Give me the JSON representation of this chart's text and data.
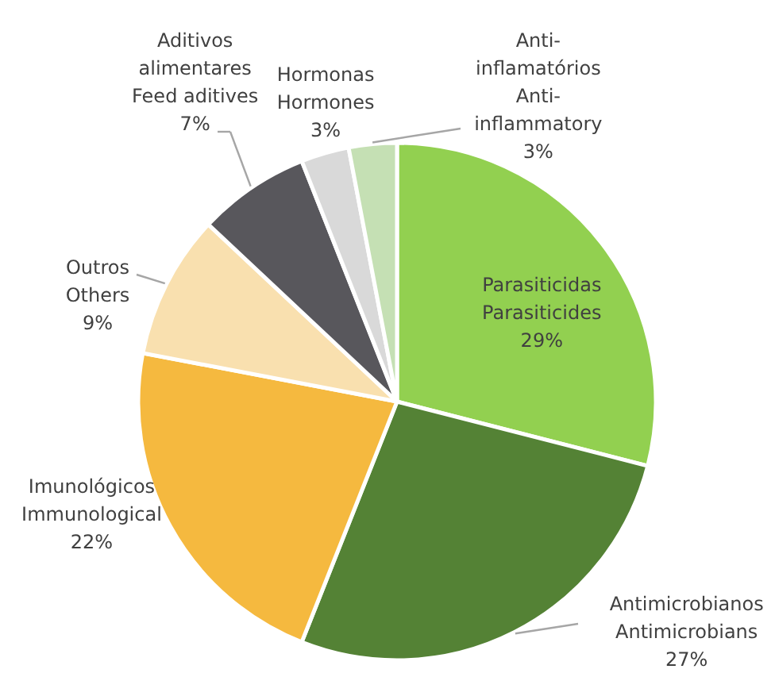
{
  "chart_data": {
    "type": "pie",
    "categories": [
      "Parasiticidas\nParasiticides",
      "Antimicrobianos\nAntimicrobians",
      "Imunológicos\nImmunological",
      "Outros\nOthers",
      "Aditivos\nalimentares\nFeed aditives",
      "Hormonas\nHormones",
      "Anti-\ninflamatórios\nAnti-\ninflammatory"
    ],
    "values": [
      29,
      27,
      22,
      9,
      7,
      3,
      3
    ],
    "colors": [
      "#92d050",
      "#548235",
      "#f5b93f",
      "#f9e0af",
      "#58575c",
      "#d9d9d9",
      "#c5e0b4"
    ],
    "value_labels": [
      "29%",
      "27%",
      "22%",
      "9%",
      "7%",
      "3%",
      "3%"
    ]
  }
}
